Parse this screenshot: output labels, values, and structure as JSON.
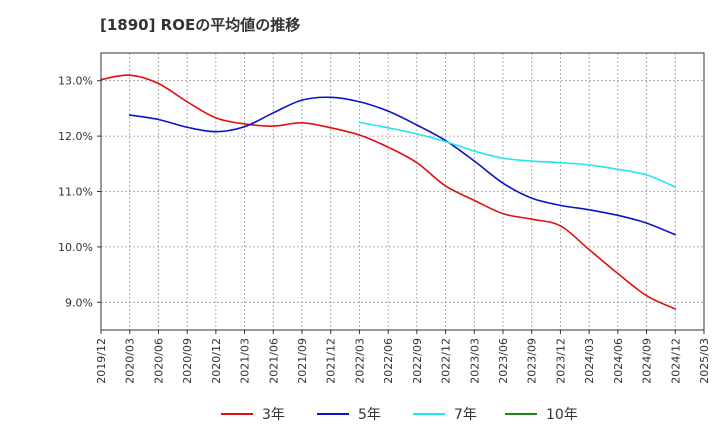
{
  "chart_data": {
    "type": "line",
    "title": "[1890]  ROEの平均値の推移",
    "xlabel": "",
    "ylabel": "",
    "ylim": [
      8.5,
      13.5
    ],
    "yticks": [
      9.0,
      10.0,
      11.0,
      12.0,
      13.0
    ],
    "ytick_labels": [
      "9.0%",
      "10.0%",
      "11.0%",
      "12.0%",
      "13.0%"
    ],
    "x": [
      "2019/12",
      "2020/03",
      "2020/06",
      "2020/09",
      "2020/12",
      "2021/03",
      "2021/06",
      "2021/09",
      "2021/12",
      "2022/03",
      "2022/06",
      "2022/09",
      "2022/12",
      "2023/03",
      "2023/06",
      "2023/09",
      "2023/12",
      "2024/03",
      "2024/06",
      "2024/09",
      "2024/12",
      "2025/03"
    ],
    "grid": true,
    "legend_position": "bottom",
    "series": [
      {
        "name": "3年",
        "color": "#e01010",
        "values": [
          13.02,
          13.1,
          12.95,
          12.62,
          12.33,
          12.22,
          12.18,
          12.24,
          12.15,
          12.02,
          11.8,
          11.52,
          11.1,
          10.84,
          10.6,
          10.5,
          10.38,
          9.95,
          9.52,
          9.12,
          8.88,
          null
        ]
      },
      {
        "name": "5年",
        "color": "#0a16c4",
        "values": [
          null,
          12.38,
          12.3,
          12.16,
          12.08,
          12.17,
          12.42,
          12.65,
          12.7,
          12.62,
          12.45,
          12.2,
          11.92,
          11.55,
          11.15,
          10.88,
          10.75,
          10.67,
          10.57,
          10.43,
          10.22,
          null
        ]
      },
      {
        "name": "7年",
        "color": "#22e6ef",
        "values": [
          null,
          null,
          null,
          null,
          null,
          null,
          null,
          null,
          null,
          12.25,
          12.15,
          12.04,
          11.9,
          11.73,
          11.6,
          11.55,
          11.52,
          11.48,
          11.4,
          11.3,
          11.08,
          null
        ]
      },
      {
        "name": "10年",
        "color": "#1a8a1a",
        "values": [
          null,
          null,
          null,
          null,
          null,
          null,
          null,
          null,
          null,
          null,
          null,
          null,
          null,
          null,
          null,
          null,
          null,
          null,
          null,
          null,
          null,
          null
        ]
      }
    ]
  }
}
